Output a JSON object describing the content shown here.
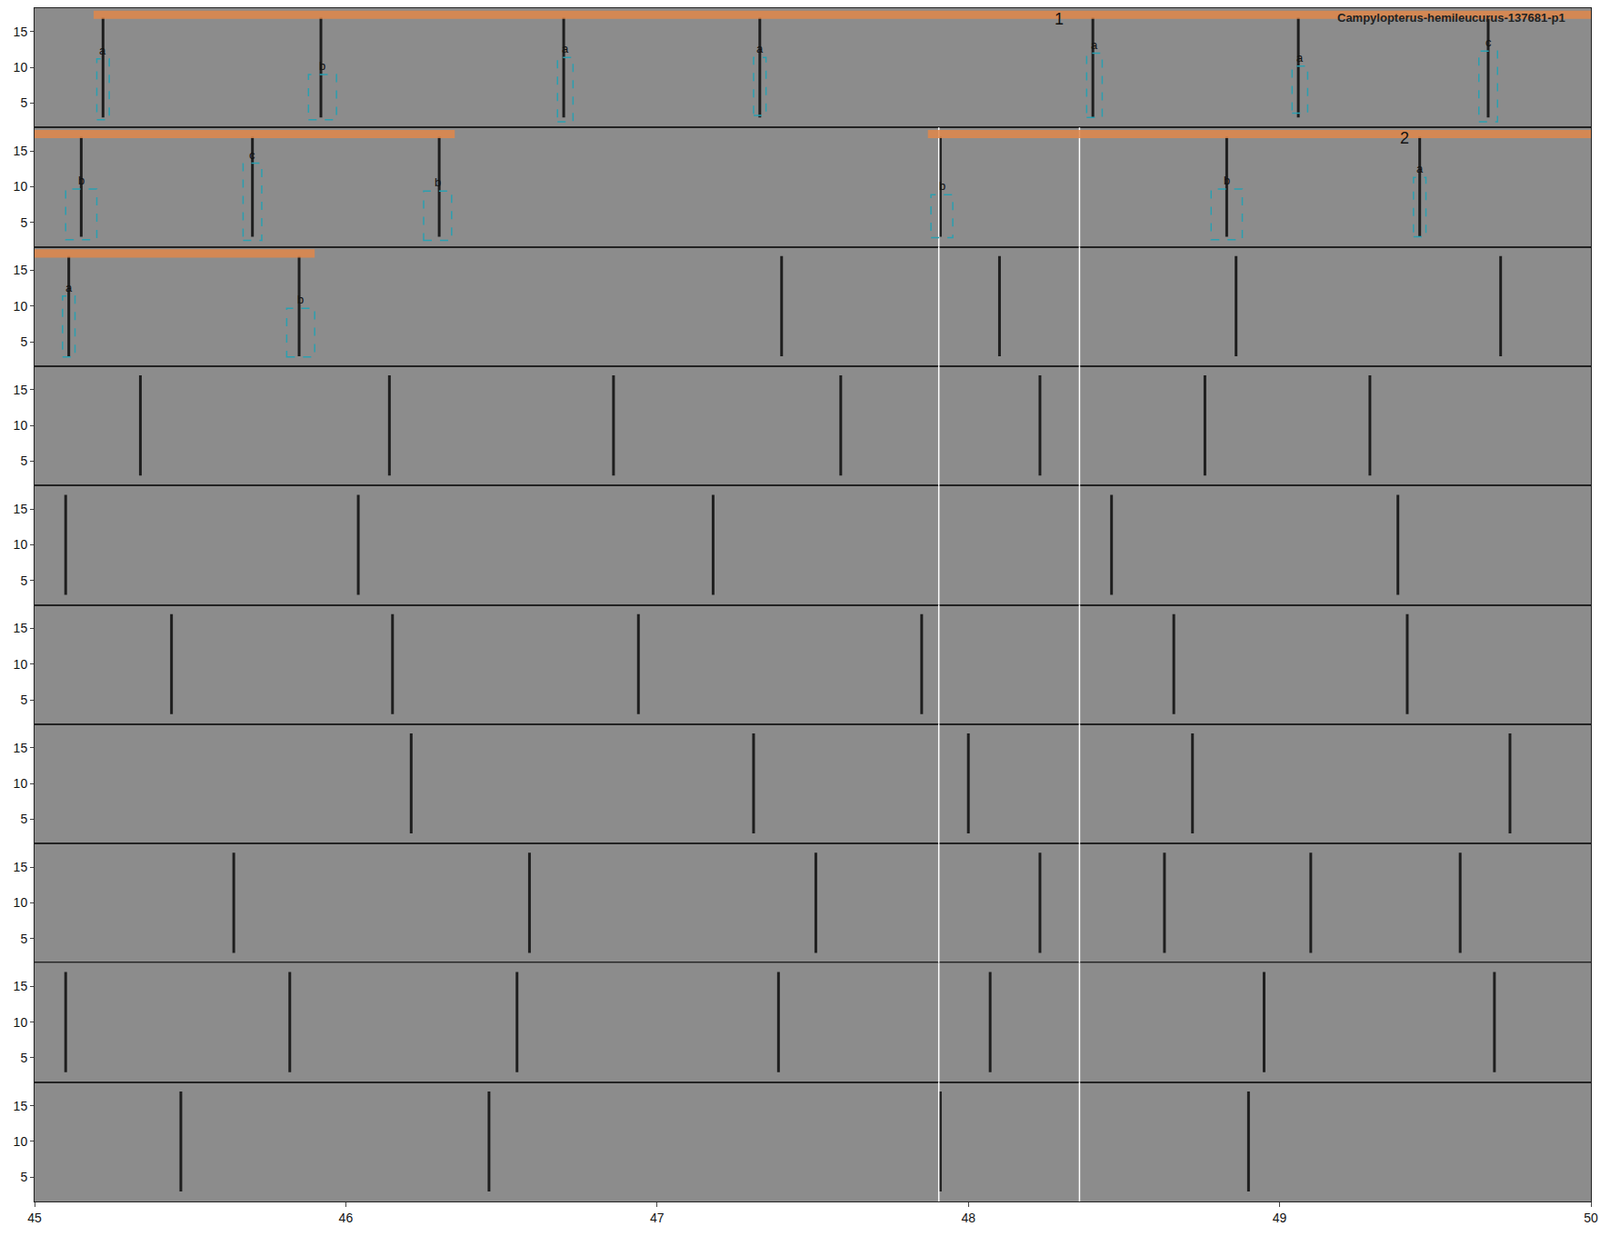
{
  "chart_data": {
    "type": "spectrogram_annotations",
    "title": "Campylopterus-hemileucurus-137681-p1",
    "xlim": [
      45,
      50
    ],
    "xticks": [
      45,
      46,
      47,
      48,
      49,
      50
    ],
    "ylim": [
      1.6,
      18.3
    ],
    "yticks": [
      5,
      10,
      15
    ],
    "call_freq_range": [
      3,
      17
    ],
    "grid": false,
    "rows": [
      {
        "calls": [
          45.22,
          45.92,
          46.7,
          47.33,
          48.4,
          49.06,
          49.67
        ],
        "white_lines": [],
        "segments": [
          {
            "x": [
              45.19,
              50
            ],
            "label": "1",
            "label_x": 48.29,
            "color": "#e0874a"
          }
        ],
        "boxes": [
          {
            "label": "a",
            "x": [
              45.2,
              45.24
            ],
            "y": [
              2.7,
              11.2
            ],
            "color": "#2a9fb0"
          },
          {
            "label": "b",
            "x": [
              45.88,
              45.97
            ],
            "y": [
              2.7,
              9.0
            ],
            "color": "#2a9fb0"
          },
          {
            "label": "a",
            "x": [
              46.68,
              46.73
            ],
            "y": [
              2.4,
              11.4
            ],
            "color": "#2a9fb0"
          },
          {
            "label": "a",
            "x": [
              47.31,
              47.35
            ],
            "y": [
              3.3,
              11.4
            ],
            "color": "#2a9fb0"
          },
          {
            "label": "a",
            "x": [
              48.38,
              48.43
            ],
            "y": [
              3.0,
              12.0
            ],
            "color": "#2a9fb0"
          },
          {
            "label": "a",
            "x": [
              49.04,
              49.09
            ],
            "y": [
              3.6,
              10.2
            ],
            "color": "#2a9fb0"
          },
          {
            "label": "c",
            "x": [
              49.64,
              49.7
            ],
            "y": [
              2.4,
              12.3
            ],
            "color": "#2a9fb0"
          }
        ]
      },
      {
        "calls": [
          45.15,
          45.7,
          46.3,
          47.91,
          48.83,
          49.45
        ],
        "white_lines": [
          47.905,
          48.357
        ],
        "segments": [
          {
            "x": [
              45,
              46.35
            ],
            "color": "#e0874a"
          },
          {
            "x": [
              47.87,
              50
            ],
            "label": "2",
            "label_x": 49.4,
            "color": "#e0874a"
          }
        ],
        "boxes": [
          {
            "label": "b",
            "x": [
              45.1,
              45.2
            ],
            "y": [
              2.6,
              9.7
            ],
            "color": "#2a9fb0"
          },
          {
            "label": "c",
            "x": [
              45.67,
              45.73
            ],
            "y": [
              2.5,
              13.3
            ],
            "color": "#2a9fb0"
          },
          {
            "label": "b",
            "x": [
              46.25,
              46.34
            ],
            "y": [
              2.5,
              9.4
            ],
            "color": "#2a9fb0"
          },
          {
            "label": "b",
            "x": [
              47.88,
              47.95
            ],
            "y": [
              2.9,
              8.9
            ],
            "color": "#2a9fb0"
          },
          {
            "label": "b",
            "x": [
              48.78,
              48.88
            ],
            "y": [
              2.6,
              9.7
            ],
            "color": "#2a9fb0"
          },
          {
            "label": "a",
            "x": [
              49.43,
              49.47
            ],
            "y": [
              3.0,
              11.3
            ],
            "color": "#2a9fb0"
          }
        ]
      },
      {
        "calls": [
          45.11,
          45.85,
          47.4,
          48.1,
          48.86,
          49.71
        ],
        "white_lines": [
          47.905,
          48.357
        ],
        "segments": [
          {
            "x": [
              45,
              45.9
            ],
            "color": "#e0874a"
          }
        ],
        "boxes": [
          {
            "label": "a",
            "x": [
              45.09,
              45.13
            ],
            "y": [
              2.9,
              11.4
            ],
            "color": "#2a9fb0"
          },
          {
            "label": "b",
            "x": [
              45.81,
              45.9
            ],
            "y": [
              2.9,
              9.7
            ],
            "color": "#2a9fb0"
          }
        ]
      },
      {
        "calls": [
          45.34,
          46.14,
          46.86,
          47.59,
          48.23,
          48.76,
          49.29
        ],
        "white_lines": [
          47.905,
          48.357
        ],
        "segments": [],
        "boxes": []
      },
      {
        "calls": [
          45.1,
          46.04,
          47.18,
          48.46,
          49.38
        ],
        "white_lines": [
          47.905,
          48.357
        ],
        "segments": [],
        "boxes": []
      },
      {
        "calls": [
          45.44,
          46.15,
          46.94,
          47.85,
          48.66,
          49.41
        ],
        "white_lines": [
          47.905,
          48.357
        ],
        "segments": [],
        "boxes": []
      },
      {
        "calls": [
          46.21,
          47.31,
          48.0,
          48.72,
          49.74
        ],
        "white_lines": [
          47.905,
          48.357
        ],
        "segments": [],
        "boxes": []
      },
      {
        "calls": [
          45.64,
          46.59,
          47.51,
          48.23,
          48.63,
          49.1,
          49.58
        ],
        "white_lines": [
          47.905,
          48.357
        ],
        "segments": [],
        "boxes": []
      },
      {
        "calls": [
          45.1,
          45.82,
          46.55,
          47.39,
          48.07,
          48.95,
          49.69
        ],
        "white_lines": [
          47.905,
          48.357
        ],
        "segments": [],
        "boxes": []
      },
      {
        "calls": [
          45.47,
          46.46,
          47.91,
          48.9
        ],
        "white_lines": [
          47.905,
          48.357
        ],
        "segments": [],
        "boxes": []
      }
    ]
  }
}
